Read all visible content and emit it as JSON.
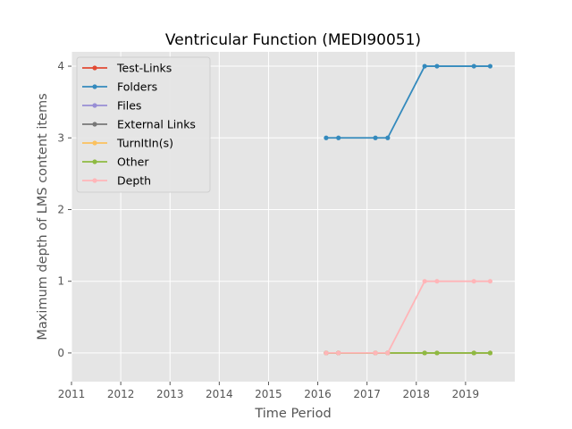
{
  "chart_data": {
    "type": "line",
    "title": "Ventricular Function (MEDI90051)",
    "xlabel": "Time Period",
    "ylabel": "Maximum depth of LMS content items",
    "xlim": [
      2011,
      2020
    ],
    "ylim": [
      -0.4,
      4.2
    ],
    "xticks": [
      2011,
      2012,
      2013,
      2014,
      2015,
      2016,
      2017,
      2018,
      2019
    ],
    "yticks": [
      0,
      1,
      2,
      3,
      4
    ],
    "grid": true,
    "legend_position": "upper-left",
    "x": [
      2016.17,
      2016.42,
      2017.17,
      2017.42,
      2018.17,
      2018.42,
      2019.17,
      2019.5
    ],
    "series": [
      {
        "name": "Test-Links",
        "color": "#e24a33",
        "values": [
          0,
          0,
          0,
          0,
          0,
          0,
          0,
          0
        ]
      },
      {
        "name": "Folders",
        "color": "#348abd",
        "values": [
          3,
          3,
          3,
          3,
          4,
          4,
          4,
          4
        ]
      },
      {
        "name": "Files",
        "color": "#988ed5",
        "values": [
          0,
          0,
          0,
          0,
          0,
          0,
          0,
          0
        ]
      },
      {
        "name": "External Links",
        "color": "#777777",
        "values": [
          0,
          0,
          0,
          0,
          0,
          0,
          0,
          0
        ]
      },
      {
        "name": "TurnItIn(s)",
        "color": "#fbc15e",
        "values": [
          0,
          0,
          0,
          0,
          0,
          0,
          0,
          0
        ]
      },
      {
        "name": "Other",
        "color": "#8eba42",
        "values": [
          0,
          0,
          0,
          0,
          0,
          0,
          0,
          0
        ]
      },
      {
        "name": "Depth",
        "color": "#ffb5b8",
        "values": [
          0,
          0,
          0,
          0,
          1,
          1,
          1,
          1
        ]
      }
    ]
  }
}
